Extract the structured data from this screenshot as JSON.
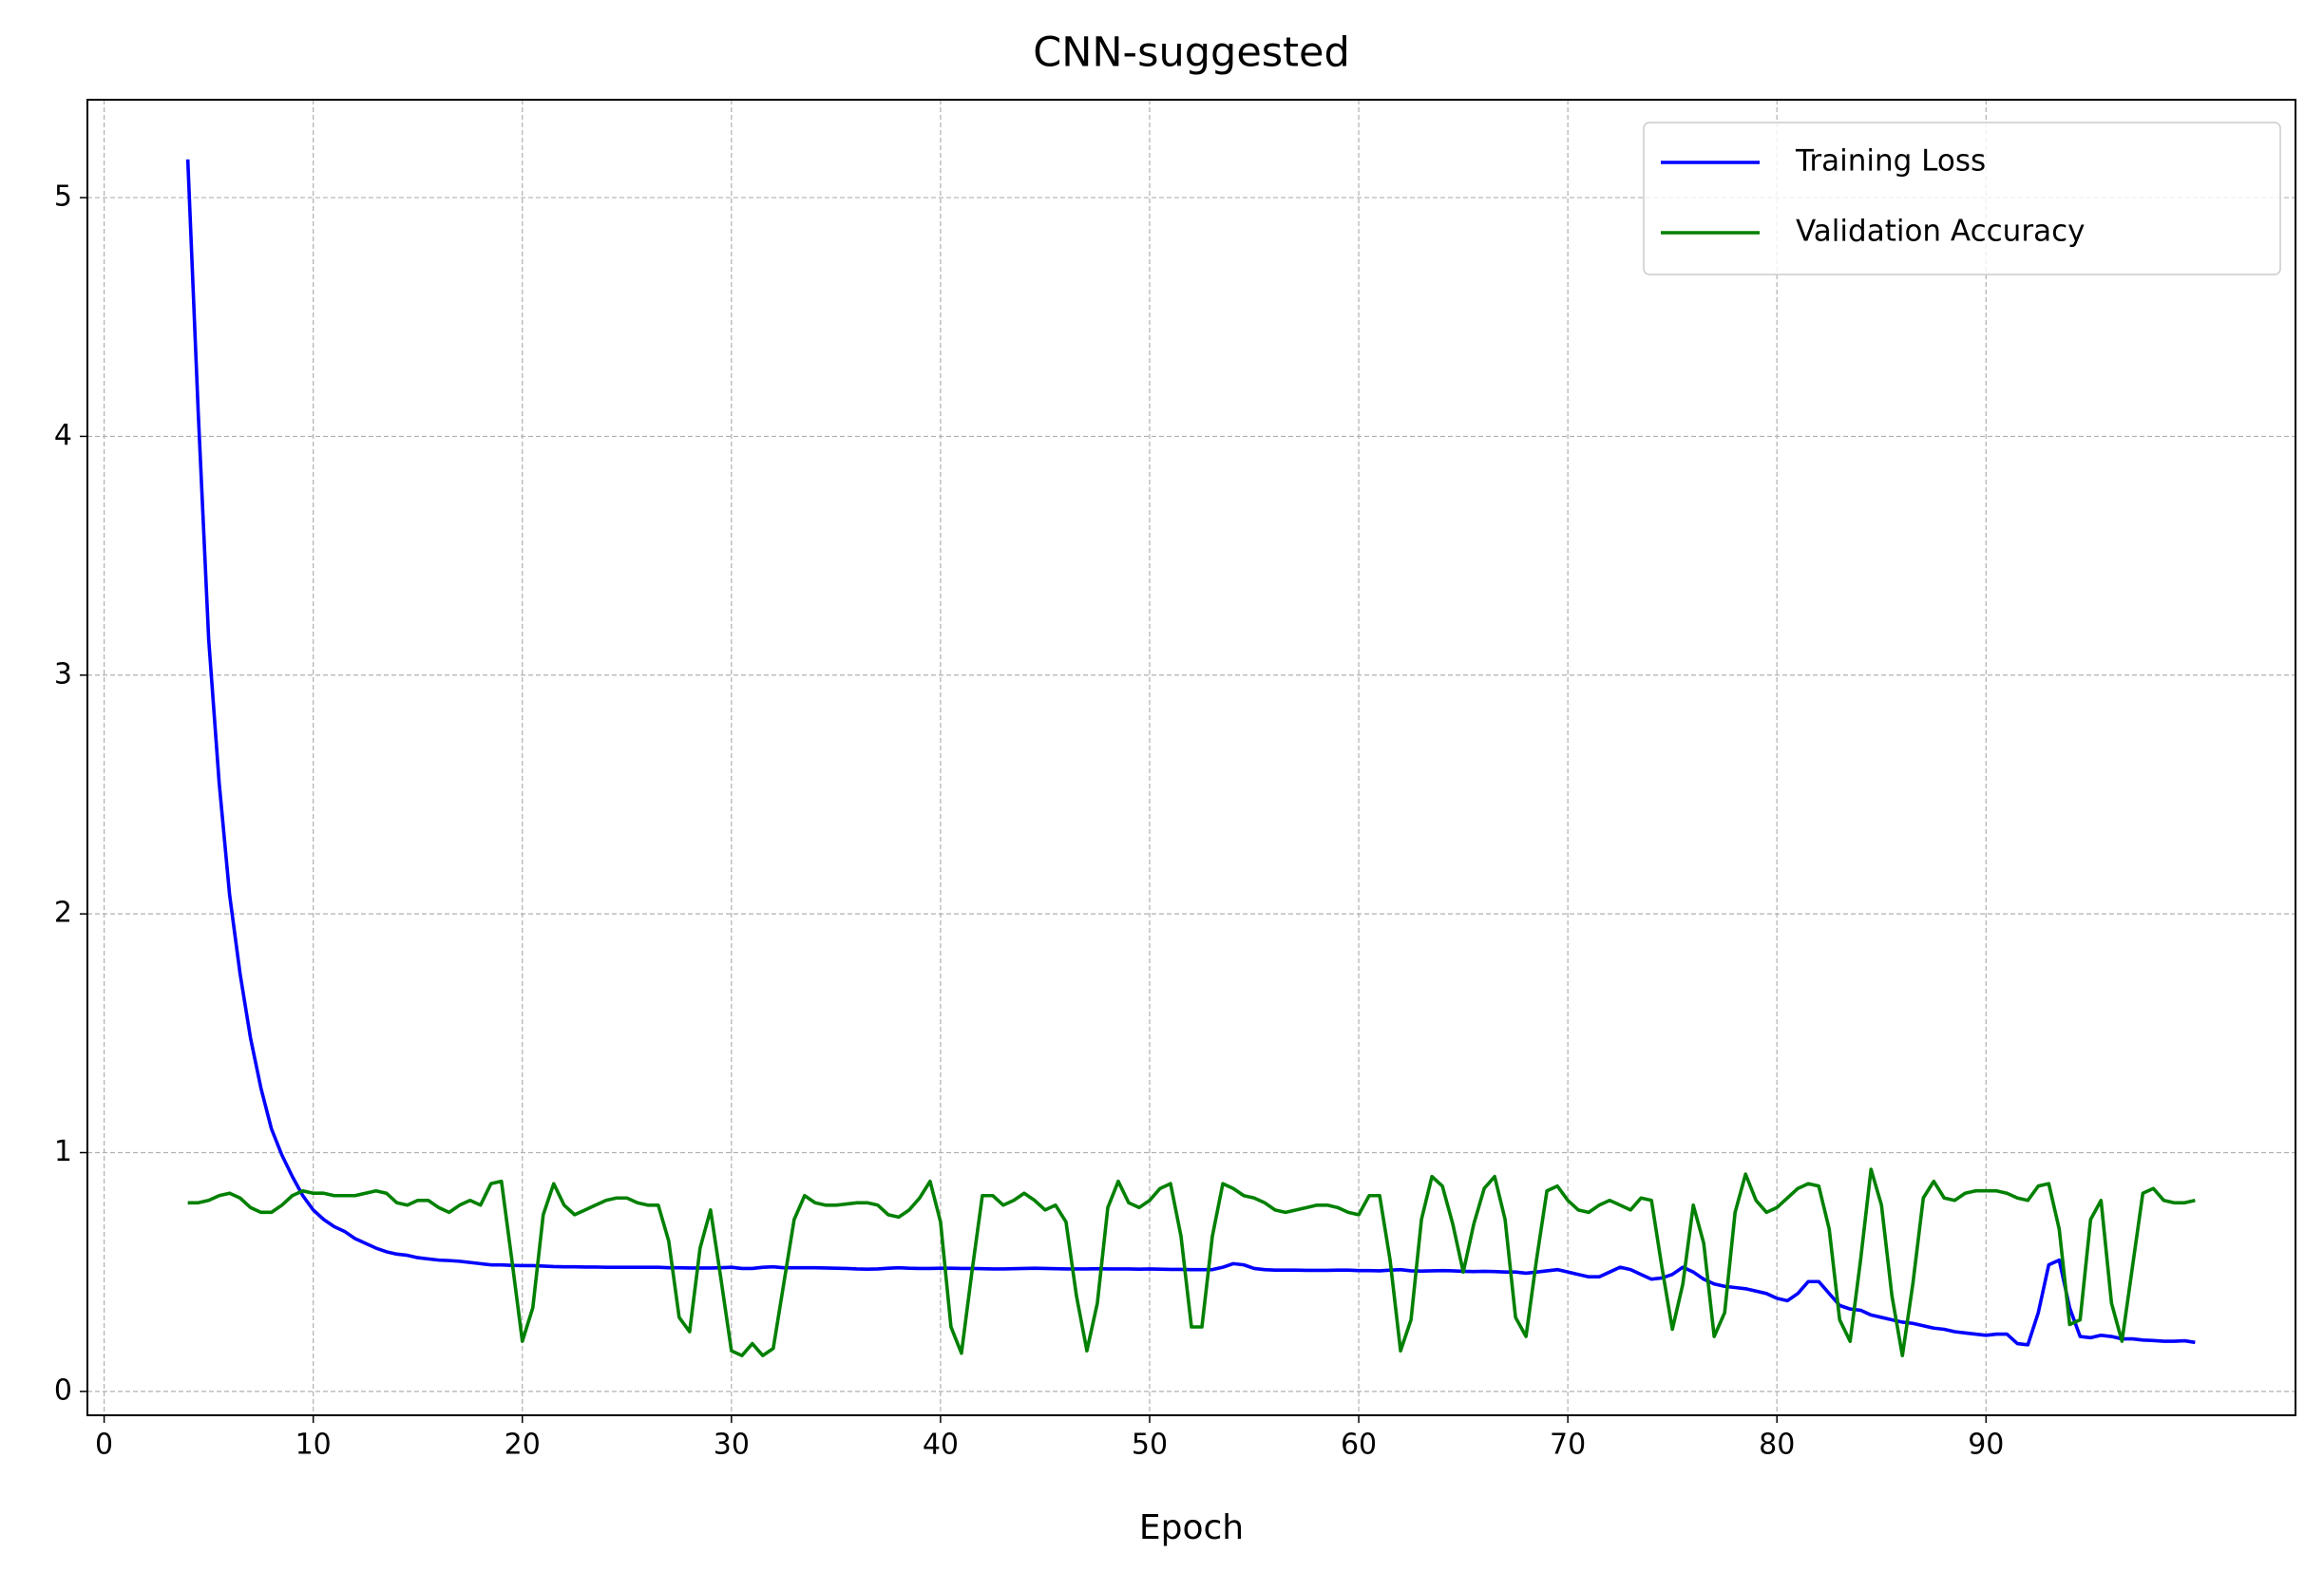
{
  "chart_data": {
    "type": "line",
    "title": "CNN-suggested",
    "xlabel": "Epoch",
    "x": [
      4,
      4.5,
      5,
      5.5,
      6,
      6.5,
      7,
      7.5,
      8,
      8.5,
      9,
      9.5,
      10,
      10.5,
      11,
      11.5,
      12,
      12.5,
      13,
      13.5,
      14,
      14.5,
      15,
      15.5,
      16,
      16.5,
      17,
      17.5,
      18,
      18.5,
      19,
      19.5,
      20,
      20.5,
      21,
      21.5,
      22,
      22.5,
      23,
      23.5,
      24,
      24.5,
      25,
      25.5,
      26,
      26.5,
      27,
      27.5,
      28,
      28.5,
      29,
      29.5,
      30,
      30.5,
      31,
      31.5,
      32,
      32.5,
      33,
      33.5,
      34,
      34.5,
      35,
      35.5,
      36,
      36.5,
      37,
      37.5,
      38,
      38.5,
      39,
      39.5,
      40,
      40.5,
      41,
      41.5,
      42,
      42.5,
      43,
      43.5,
      44,
      44.5,
      45,
      45.5,
      46,
      46.5,
      47,
      47.5,
      48,
      48.5,
      49,
      49.5,
      50,
      50.5,
      51,
      51.5,
      52,
      52.5,
      53,
      53.5,
      54,
      54.5,
      55,
      55.5,
      56,
      56.5,
      57,
      57.5,
      58,
      58.5,
      59,
      59.5,
      60,
      60.5,
      61,
      61.5,
      62,
      62.5,
      63,
      63.5,
      64,
      64.5,
      65,
      65.5,
      66,
      66.5,
      67,
      67.5,
      68,
      68.5,
      69,
      69.5,
      70,
      70.5,
      71,
      71.5,
      72,
      72.5,
      73,
      73.5,
      74,
      74.5,
      75,
      75.5,
      76,
      76.5,
      77,
      77.5,
      78,
      78.5,
      79,
      79.5,
      80,
      80.5,
      81,
      81.5,
      82,
      82.5,
      83,
      83.5,
      84,
      84.5,
      85,
      85.5,
      86,
      86.5,
      87,
      87.5,
      88,
      88.5,
      89,
      89.5,
      90,
      90.5,
      91,
      91.5,
      92,
      92.5,
      93,
      93.5,
      94,
      94.5,
      95,
      95.5,
      96,
      96.5,
      97,
      97.5,
      98,
      98.5,
      99,
      99.5,
      100
    ],
    "series": [
      {
        "name": "Training Loss",
        "color": "#0000ff",
        "values": [
          5.16,
          4.1,
          3.15,
          2.55,
          2.08,
          1.75,
          1.48,
          1.27,
          1.1,
          0.99,
          0.9,
          0.82,
          0.76,
          0.72,
          0.69,
          0.67,
          0.64,
          0.62,
          0.6,
          0.585,
          0.575,
          0.57,
          0.56,
          0.555,
          0.55,
          0.548,
          0.545,
          0.54,
          0.535,
          0.53,
          0.53,
          0.528,
          0.527,
          0.527,
          0.525,
          0.523,
          0.522,
          0.522,
          0.521,
          0.521,
          0.52,
          0.52,
          0.52,
          0.52,
          0.52,
          0.52,
          0.518,
          0.518,
          0.517,
          0.517,
          0.517,
          0.518,
          0.52,
          0.515,
          0.515,
          0.52,
          0.522,
          0.518,
          0.518,
          0.518,
          0.518,
          0.517,
          0.516,
          0.515,
          0.513,
          0.512,
          0.513,
          0.516,
          0.518,
          0.516,
          0.515,
          0.515,
          0.516,
          0.516,
          0.515,
          0.515,
          0.514,
          0.513,
          0.513,
          0.514,
          0.515,
          0.516,
          0.515,
          0.514,
          0.513,
          0.513,
          0.513,
          0.514,
          0.513,
          0.513,
          0.513,
          0.512,
          0.513,
          0.512,
          0.511,
          0.511,
          0.51,
          0.51,
          0.51,
          0.52,
          0.535,
          0.53,
          0.515,
          0.51,
          0.508,
          0.508,
          0.508,
          0.507,
          0.507,
          0.507,
          0.508,
          0.508,
          0.506,
          0.506,
          0.505,
          0.508,
          0.51,
          0.505,
          0.504,
          0.505,
          0.506,
          0.505,
          0.503,
          0.502,
          0.503,
          0.502,
          0.5,
          0.5,
          0.495,
          0.5,
          0.505,
          0.51,
          0.5,
          0.49,
          0.48,
          0.48,
          0.5,
          0.52,
          0.51,
          0.49,
          0.47,
          0.475,
          0.49,
          0.52,
          0.5,
          0.47,
          0.45,
          0.44,
          0.435,
          0.43,
          0.42,
          0.41,
          0.39,
          0.38,
          0.41,
          0.46,
          0.46,
          0.41,
          0.36,
          0.345,
          0.34,
          0.32,
          0.31,
          0.3,
          0.29,
          0.285,
          0.275,
          0.265,
          0.26,
          0.25,
          0.245,
          0.24,
          0.235,
          0.24,
          0.24,
          0.2,
          0.195,
          0.33,
          0.53,
          0.55,
          0.35,
          0.23,
          0.225,
          0.235,
          0.23,
          0.22,
          0.22,
          0.215,
          0.213,
          0.21,
          0.21,
          0.212,
          0.205
        ]
      },
      {
        "name": "Validation Accuracy",
        "color": "#008000",
        "values": [
          0.79,
          0.79,
          0.8,
          0.82,
          0.83,
          0.81,
          0.77,
          0.75,
          0.75,
          0.78,
          0.82,
          0.84,
          0.83,
          0.83,
          0.82,
          0.82,
          0.82,
          0.83,
          0.84,
          0.83,
          0.79,
          0.78,
          0.8,
          0.8,
          0.77,
          0.75,
          0.78,
          0.8,
          0.78,
          0.87,
          0.88,
          0.55,
          0.21,
          0.35,
          0.74,
          0.87,
          0.78,
          0.74,
          0.76,
          0.78,
          0.8,
          0.81,
          0.81,
          0.79,
          0.78,
          0.78,
          0.63,
          0.31,
          0.25,
          0.6,
          0.76,
          0.47,
          0.17,
          0.15,
          0.2,
          0.15,
          0.18,
          0.45,
          0.72,
          0.82,
          0.79,
          0.78,
          0.78,
          0.785,
          0.79,
          0.79,
          0.78,
          0.74,
          0.73,
          0.76,
          0.81,
          0.88,
          0.71,
          0.27,
          0.16,
          0.5,
          0.82,
          0.82,
          0.78,
          0.8,
          0.83,
          0.8,
          0.76,
          0.78,
          0.71,
          0.4,
          0.17,
          0.37,
          0.77,
          0.88,
          0.79,
          0.77,
          0.8,
          0.85,
          0.87,
          0.65,
          0.27,
          0.27,
          0.65,
          0.87,
          0.85,
          0.82,
          0.81,
          0.79,
          0.76,
          0.75,
          0.76,
          0.77,
          0.78,
          0.78,
          0.77,
          0.75,
          0.74,
          0.82,
          0.82,
          0.55,
          0.17,
          0.3,
          0.72,
          0.9,
          0.86,
          0.7,
          0.5,
          0.7,
          0.85,
          0.9,
          0.72,
          0.31,
          0.23,
          0.55,
          0.84,
          0.86,
          0.8,
          0.76,
          0.75,
          0.78,
          0.8,
          0.78,
          0.76,
          0.81,
          0.8,
          0.52,
          0.26,
          0.45,
          0.78,
          0.62,
          0.23,
          0.33,
          0.75,
          0.91,
          0.8,
          0.75,
          0.77,
          0.81,
          0.85,
          0.87,
          0.86,
          0.68,
          0.3,
          0.21,
          0.55,
          0.93,
          0.78,
          0.4,
          0.15,
          0.45,
          0.81,
          0.88,
          0.81,
          0.8,
          0.83,
          0.84,
          0.84,
          0.84,
          0.83,
          0.81,
          0.8,
          0.86,
          0.87,
          0.68,
          0.28,
          0.3,
          0.72,
          0.8,
          0.37,
          0.21,
          0.52,
          0.83,
          0.85,
          0.8,
          0.79,
          0.79,
          0.8
        ]
      }
    ],
    "xlim": [
      -0.8,
      104.8
    ],
    "ylim": [
      -0.1,
      5.41
    ],
    "xticks": [
      0,
      10,
      20,
      30,
      40,
      50,
      60,
      70,
      80,
      90
    ],
    "yticks": [
      0,
      1,
      2,
      3,
      4,
      5
    ],
    "grid": true,
    "legend": "upper right"
  }
}
